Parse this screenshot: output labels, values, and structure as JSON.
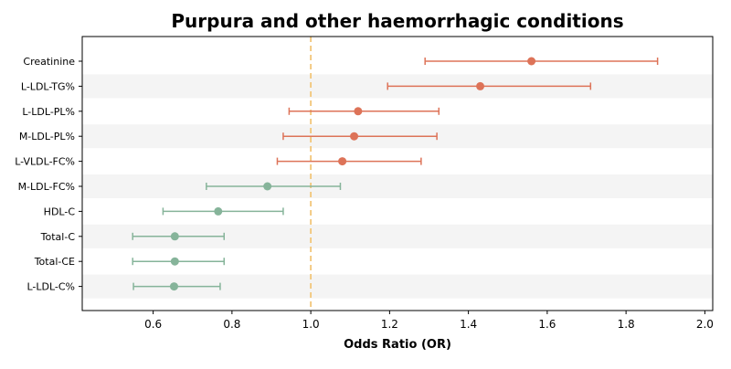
{
  "chart_data": {
    "type": "forest",
    "title": "Purpura and other haemorrhagic conditions",
    "xlabel": "Odds Ratio (OR)",
    "ylabel": "",
    "xlim": [
      0.42,
      2.02
    ],
    "xticks": [
      0.6,
      0.8,
      1.0,
      1.2,
      1.4,
      1.6,
      1.8,
      2.0
    ],
    "xtick_labels": [
      "0.6",
      "0.8",
      "1.0",
      "1.2",
      "1.4",
      "1.6",
      "1.8",
      "2.0"
    ],
    "reference_line": {
      "x": 1.0,
      "color": "#f2c679",
      "style": "dashed"
    },
    "colors": {
      "positive": "#dd7358",
      "negative": "#86b49a",
      "band": "#f4f4f4"
    },
    "rows": [
      {
        "label": "Creatinine",
        "or": 1.56,
        "lo": 1.29,
        "hi": 1.88
      },
      {
        "label": "L-LDL-TG%",
        "or": 1.43,
        "lo": 1.195,
        "hi": 1.71
      },
      {
        "label": "L-LDL-PL%",
        "or": 1.12,
        "lo": 0.945,
        "hi": 1.325
      },
      {
        "label": "M-LDL-PL%",
        "or": 1.11,
        "lo": 0.93,
        "hi": 1.32
      },
      {
        "label": "L-VLDL-FC%",
        "or": 1.08,
        "lo": 0.915,
        "hi": 1.28
      },
      {
        "label": "M-LDL-FC%",
        "or": 0.89,
        "lo": 0.735,
        "hi": 1.075
      },
      {
        "label": "HDL-C",
        "or": 0.765,
        "lo": 0.625,
        "hi": 0.93
      },
      {
        "label": "Total-C",
        "or": 0.655,
        "lo": 0.548,
        "hi": 0.78
      },
      {
        "label": "Total-CE",
        "or": 0.655,
        "lo": 0.548,
        "hi": 0.78
      },
      {
        "label": "L-LDL-C%",
        "or": 0.653,
        "lo": 0.55,
        "hi": 0.77
      }
    ]
  }
}
